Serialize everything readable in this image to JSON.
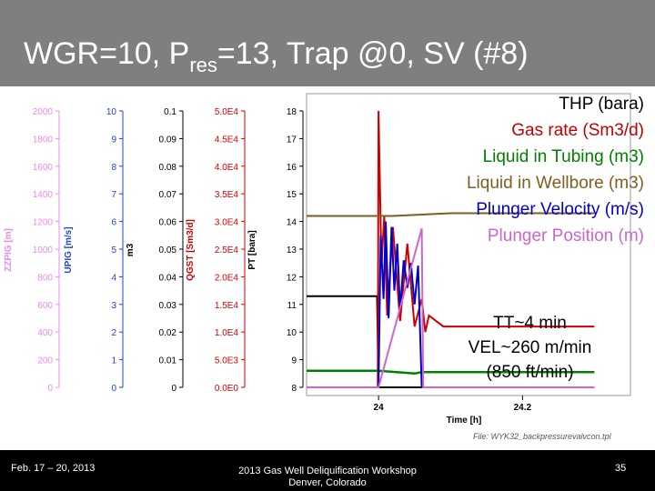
{
  "slide": {
    "title_main": "WGR=10, P",
    "title_sub": "res",
    "title_rest": "=13, Trap @0, SV (#8)"
  },
  "legend": [
    {
      "label": "THP (bara)",
      "color": "#000000"
    },
    {
      "label": "Gas rate (Sm3/d)",
      "color": "#c00000"
    },
    {
      "label": "Liquid in Tubing (m3)",
      "color": "#008000"
    },
    {
      "label": "Liquid in Wellbore (m3)",
      "color": "#7f5f1f"
    },
    {
      "label": "Plunger Velocity (m/s)",
      "color": "#0000cc"
    },
    {
      "label": "Plunger Position (m)",
      "color": "#cc66cc"
    }
  ],
  "annotation": {
    "line1": "TT~4 min",
    "line2": "VEL~260 m/min",
    "line3": "(850 ft/min)"
  },
  "footer": {
    "date": "Feb. 17 – 20, 2013",
    "workshop_line1": "2013 Gas Well Deliquification Workshop",
    "workshop_line2": "Denver, Colorado",
    "page": "35"
  },
  "chart_data": {
    "type": "line",
    "xlabel": "Time [h]",
    "xticks": [
      "24",
      "24.2"
    ],
    "file_label": "File: WYK32_backpressurevalvcon.tpl",
    "axes": [
      {
        "label": "ZZPIG [m]",
        "color": "#ee88ee",
        "ticks": [
          "2000",
          "1800",
          "1600",
          "1400",
          "1200",
          "1000",
          "800",
          "600",
          "400",
          "200",
          "0"
        ]
      },
      {
        "label": "UPIG [m/s]",
        "color": "#2244cc",
        "ticks": [
          "10",
          "9",
          "8",
          "7",
          "6",
          "5",
          "4",
          "3",
          "2",
          "1",
          "0"
        ]
      },
      {
        "label": "m3",
        "color": "#000000",
        "ticks": [
          "0.1",
          "0.09",
          "0.08",
          "0.07",
          "0.06",
          "0.05",
          "0.04",
          "0.03",
          "0.02",
          "0.01",
          "0"
        ]
      },
      {
        "label": "QGST [Sm3/d]",
        "color": "#cc0000",
        "ticks": [
          "5.0E4",
          "4.5E4",
          "4.0E4",
          "3.5E4",
          "3.0E4",
          "2.5E4",
          "2.0E4",
          "1.5E4",
          "1.0E4",
          "5.0E3",
          "0.0E0"
        ]
      },
      {
        "label": "PT [bara]",
        "color": "#000000",
        "ticks": [
          "18",
          "17",
          "16",
          "15",
          "14",
          "13",
          "12",
          "11",
          "10",
          "9",
          "8"
        ]
      }
    ],
    "xlim": [
      23.9,
      24.35
    ],
    "series": [
      {
        "name": "THP (bara)",
        "color": "#000000",
        "x": [
          23.9,
          23.998,
          24.0,
          24.005,
          24.3
        ],
        "y": [
          11.3,
          11.3,
          8.0,
          8.0,
          8.0
        ]
      },
      {
        "name": "Gas rate (Sm3/d)",
        "color": "#cc0000",
        "x": [
          23.9,
          23.999,
          24.0,
          24.004,
          24.008,
          24.012,
          24.02,
          24.03,
          24.04,
          24.05,
          24.06,
          24.065,
          24.07,
          24.09,
          24.12,
          24.2,
          24.3
        ],
        "y": [
          0,
          0,
          50000.0,
          22000.0,
          31000.0,
          13000.0,
          29000.0,
          12000.0,
          26000.0,
          11000.0,
          16000.0,
          10000.0,
          13000.0,
          11000.0,
          11000.0,
          11000.0,
          11000.0
        ]
      },
      {
        "name": "Liquid in Tubing (m3)",
        "color": "#008000",
        "x": [
          23.9,
          24.0,
          24.05,
          24.06,
          24.1,
          24.2,
          24.3
        ],
        "y": [
          0.006,
          0.006,
          0.005,
          0.0055,
          0.0055,
          0.0055,
          0.0055
        ]
      },
      {
        "name": "Liquid in Wellbore (m3)",
        "color": "#7f5f1f",
        "x": [
          23.9,
          24.0,
          24.02,
          24.1,
          24.2,
          24.3
        ],
        "y": [
          0.062,
          0.062,
          0.062,
          0.063,
          0.063,
          0.063
        ]
      },
      {
        "name": "Plunger Velocity (m/s)",
        "color": "#0000cc",
        "x": [
          23.9,
          24.0,
          24.003,
          24.007,
          24.01,
          24.014,
          24.018,
          24.022,
          24.026,
          24.03,
          24.035,
          24.04,
          24.045,
          24.05,
          24.055,
          24.06,
          24.3
        ],
        "y": [
          0,
          0,
          5.5,
          3.2,
          6.0,
          2.5,
          5.8,
          3.5,
          5.2,
          2.8,
          4.6,
          3.6,
          4.5,
          3.0,
          4.4,
          0,
          0
        ]
      },
      {
        "name": "Plunger Position (m)",
        "color": "#cc66cc",
        "x": [
          23.9,
          23.998,
          24.0,
          24.06,
          24.062,
          24.1,
          24.3
        ],
        "y": [
          0,
          0,
          0,
          1150,
          0,
          0,
          0
        ]
      }
    ]
  }
}
